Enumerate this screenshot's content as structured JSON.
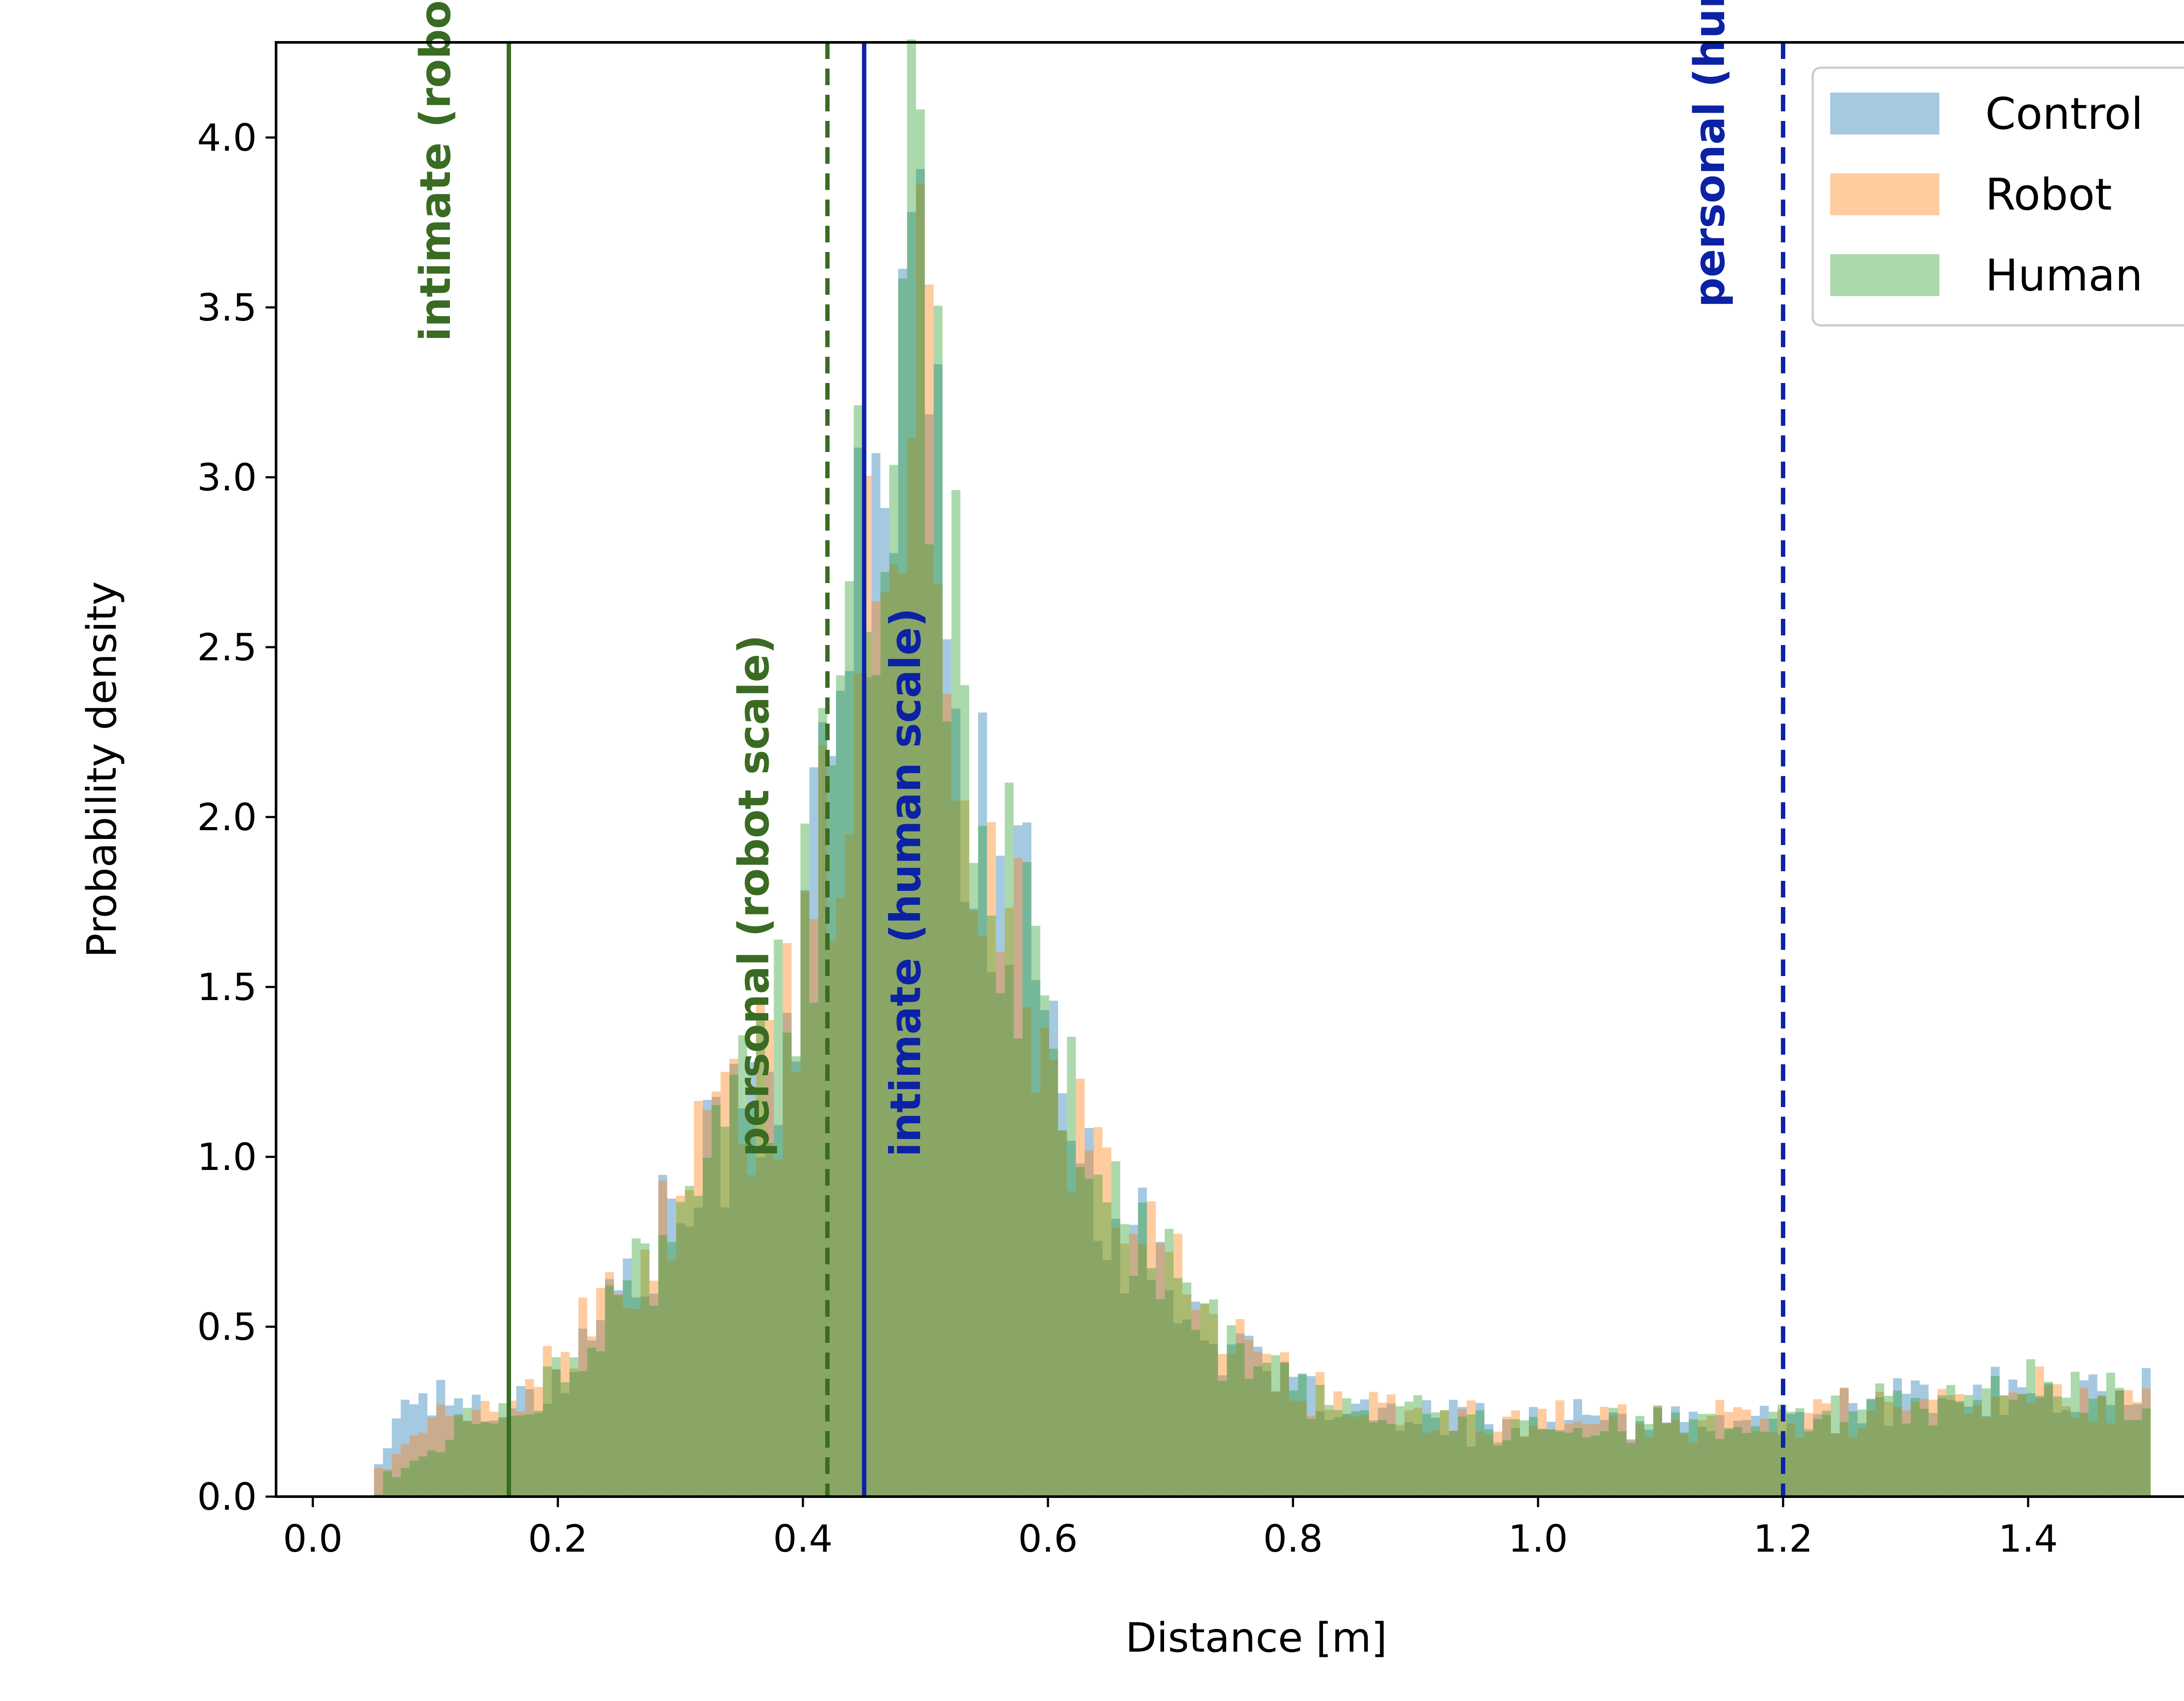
{
  "chart_data": {
    "type": "histogram",
    "xlabel": "Distance [m]",
    "ylabel": "Probability density",
    "xlim": [
      -0.03,
      1.57
    ],
    "ylim": [
      0.0,
      4.28
    ],
    "xticks": [
      0.0,
      0.2,
      0.4,
      0.6,
      0.8,
      1.0,
      1.2,
      1.4
    ],
    "xtick_labels": [
      "0.0",
      "0.2",
      "0.4",
      "0.6",
      "0.8",
      "1.0",
      "1.2",
      "1.4"
    ],
    "yticks": [
      0.0,
      0.5,
      1.0,
      1.5,
      2.0,
      2.5,
      3.0,
      3.5,
      4.0
    ],
    "ytick_labels": [
      "0.0",
      "0.5",
      "1.0",
      "1.5",
      "2.0",
      "2.5",
      "3.0",
      "3.5",
      "4.0"
    ],
    "grid": false,
    "legend_position": "top-right",
    "bins": {
      "start": 0.05,
      "end": 1.5,
      "count": 200
    },
    "series": [
      {
        "name": "Control",
        "color": "#1f77b4",
        "opacity": 0.4,
        "anchors": [
          [
            0.05,
            0.05
          ],
          [
            0.06,
            0.15
          ],
          [
            0.08,
            0.32
          ],
          [
            0.1,
            0.3
          ],
          [
            0.12,
            0.28
          ],
          [
            0.15,
            0.25
          ],
          [
            0.18,
            0.3
          ],
          [
            0.21,
            0.4
          ],
          [
            0.24,
            0.55
          ],
          [
            0.27,
            0.7
          ],
          [
            0.3,
            0.85
          ],
          [
            0.33,
            1.0
          ],
          [
            0.36,
            1.2
          ],
          [
            0.39,
            1.4
          ],
          [
            0.41,
            1.8
          ],
          [
            0.43,
            2.3
          ],
          [
            0.45,
            2.8
          ],
          [
            0.47,
            3.2
          ],
          [
            0.49,
            3.4
          ],
          [
            0.51,
            3.0
          ],
          [
            0.53,
            2.3
          ],
          [
            0.55,
            1.9
          ],
          [
            0.57,
            1.7
          ],
          [
            0.59,
            1.6
          ],
          [
            0.61,
            1.4
          ],
          [
            0.63,
            1.0
          ],
          [
            0.65,
            0.85
          ],
          [
            0.67,
            0.75
          ],
          [
            0.7,
            0.65
          ],
          [
            0.73,
            0.5
          ],
          [
            0.76,
            0.4
          ],
          [
            0.8,
            0.3
          ],
          [
            0.85,
            0.25
          ],
          [
            0.9,
            0.22
          ],
          [
            1.0,
            0.22
          ],
          [
            1.1,
            0.22
          ],
          [
            1.2,
            0.22
          ],
          [
            1.3,
            0.28
          ],
          [
            1.4,
            0.3
          ],
          [
            1.5,
            0.3
          ]
        ]
      },
      {
        "name": "Robot",
        "color": "#ff7f0e",
        "opacity": 0.4,
        "anchors": [
          [
            0.05,
            0.04
          ],
          [
            0.06,
            0.1
          ],
          [
            0.08,
            0.18
          ],
          [
            0.1,
            0.22
          ],
          [
            0.12,
            0.24
          ],
          [
            0.15,
            0.25
          ],
          [
            0.18,
            0.3
          ],
          [
            0.21,
            0.42
          ],
          [
            0.24,
            0.55
          ],
          [
            0.27,
            0.7
          ],
          [
            0.3,
            0.9
          ],
          [
            0.33,
            1.05
          ],
          [
            0.36,
            1.2
          ],
          [
            0.39,
            1.35
          ],
          [
            0.41,
            1.7
          ],
          [
            0.43,
            2.2
          ],
          [
            0.45,
            2.7
          ],
          [
            0.47,
            3.1
          ],
          [
            0.49,
            3.3
          ],
          [
            0.51,
            2.9
          ],
          [
            0.53,
            2.3
          ],
          [
            0.55,
            1.9
          ],
          [
            0.57,
            1.6
          ],
          [
            0.59,
            1.5
          ],
          [
            0.61,
            1.3
          ],
          [
            0.63,
            1.0
          ],
          [
            0.65,
            0.9
          ],
          [
            0.67,
            0.8
          ],
          [
            0.7,
            0.7
          ],
          [
            0.73,
            0.55
          ],
          [
            0.76,
            0.45
          ],
          [
            0.8,
            0.32
          ],
          [
            0.85,
            0.25
          ],
          [
            0.9,
            0.23
          ],
          [
            1.0,
            0.23
          ],
          [
            1.1,
            0.22
          ],
          [
            1.2,
            0.22
          ],
          [
            1.3,
            0.27
          ],
          [
            1.4,
            0.3
          ],
          [
            1.5,
            0.3
          ]
        ]
      },
      {
        "name": "Human",
        "color": "#2ca02c",
        "opacity": 0.4,
        "anchors": [
          [
            0.05,
            0.02
          ],
          [
            0.06,
            0.05
          ],
          [
            0.08,
            0.1
          ],
          [
            0.1,
            0.15
          ],
          [
            0.12,
            0.2
          ],
          [
            0.15,
            0.24
          ],
          [
            0.18,
            0.3
          ],
          [
            0.21,
            0.4
          ],
          [
            0.24,
            0.5
          ],
          [
            0.27,
            0.65
          ],
          [
            0.3,
            0.85
          ],
          [
            0.33,
            1.0
          ],
          [
            0.36,
            1.2
          ],
          [
            0.39,
            1.45
          ],
          [
            0.41,
            1.8
          ],
          [
            0.43,
            2.3
          ],
          [
            0.45,
            2.8
          ],
          [
            0.47,
            3.3
          ],
          [
            0.49,
            3.5
          ],
          [
            0.51,
            3.0
          ],
          [
            0.53,
            2.4
          ],
          [
            0.55,
            2.0
          ],
          [
            0.57,
            1.75
          ],
          [
            0.59,
            1.55
          ],
          [
            0.61,
            1.35
          ],
          [
            0.63,
            1.0
          ],
          [
            0.65,
            0.85
          ],
          [
            0.67,
            0.75
          ],
          [
            0.7,
            0.65
          ],
          [
            0.73,
            0.5
          ],
          [
            0.76,
            0.4
          ],
          [
            0.8,
            0.3
          ],
          [
            0.85,
            0.25
          ],
          [
            0.9,
            0.23
          ],
          [
            1.0,
            0.22
          ],
          [
            1.1,
            0.22
          ],
          [
            1.2,
            0.22
          ],
          [
            1.3,
            0.27
          ],
          [
            1.4,
            0.32
          ],
          [
            1.5,
            0.3
          ]
        ]
      }
    ],
    "reference_lines": [
      {
        "x": 0.16,
        "style": "solid",
        "color": "#3a6b22",
        "label": "intimate (robot scale)",
        "label_y": 3.4,
        "label_side": "left"
      },
      {
        "x": 0.42,
        "style": "dashed",
        "color": "#3a6b22",
        "label": "personal (robot scale)",
        "label_y": 1.0,
        "label_side": "left"
      },
      {
        "x": 0.45,
        "style": "solid",
        "color": "#0c22a5",
        "label": "intimate (human scale)",
        "label_y": 1.0,
        "label_side": "right"
      },
      {
        "x": 1.2,
        "style": "dashed",
        "color": "#0c22a5",
        "label": "personal (human scale)",
        "label_y": 3.5,
        "label_side": "left"
      }
    ]
  }
}
